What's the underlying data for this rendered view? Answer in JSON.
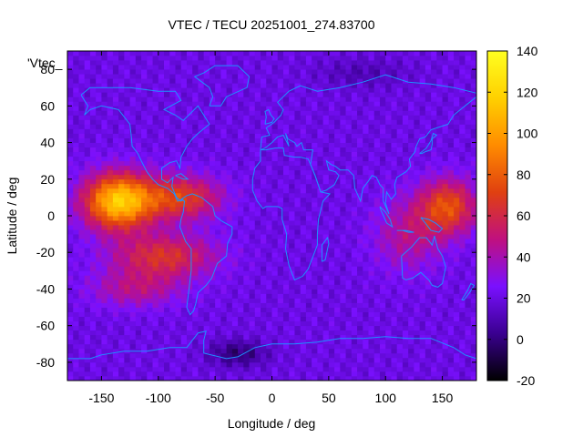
{
  "chart_data": {
    "type": "heatmap",
    "title": "VTEC / TECU 20251001_274.83700",
    "xlabel": "Longitude / deg",
    "ylabel": "Latitude / deg",
    "legend_label": "'Vtec_",
    "xlim": [
      -180,
      180
    ],
    "ylim": [
      -90,
      90
    ],
    "x_ticks": [
      -150,
      -100,
      -50,
      0,
      50,
      100,
      150
    ],
    "y_ticks": [
      -80,
      -60,
      -40,
      -20,
      0,
      20,
      40,
      60,
      80
    ],
    "colorbar": {
      "range": [
        -20,
        140
      ],
      "ticks": [
        -20,
        0,
        20,
        40,
        60,
        80,
        100,
        120,
        140
      ],
      "colors": [
        "#000000",
        "#3a0090",
        "#7a10ff",
        "#c0107f",
        "#e04010",
        "#ff8c00",
        "#ffd000",
        "#ffff20"
      ]
    },
    "coastline_color": "#1e90ff",
    "anomalies": [
      {
        "lon": -135,
        "lat": 8,
        "sigma_lon": 30,
        "sigma_lat": 15,
        "amp": 95
      },
      {
        "lon": -80,
        "lat": 10,
        "sigma_lon": 35,
        "sigma_lat": 12,
        "amp": 50
      },
      {
        "lon": -95,
        "lat": -22,
        "sigma_lon": 45,
        "sigma_lat": 12,
        "amp": 45
      },
      {
        "lon": 155,
        "lat": 5,
        "sigma_lon": 25,
        "sigma_lat": 15,
        "amp": 55
      },
      {
        "lon": 120,
        "lat": -10,
        "sigma_lon": 30,
        "sigma_lat": 20,
        "amp": 25
      },
      {
        "lon": -120,
        "lat": -40,
        "sigma_lon": 40,
        "sigma_lat": 10,
        "amp": 25
      },
      {
        "lon": -30,
        "lat": -75,
        "sigma_lon": 25,
        "sigma_lat": 7,
        "amp": -22
      },
      {
        "lon": 80,
        "lat": 78,
        "sigma_lon": 40,
        "sigma_lat": 8,
        "amp": -10
      }
    ],
    "base_value": 20
  }
}
